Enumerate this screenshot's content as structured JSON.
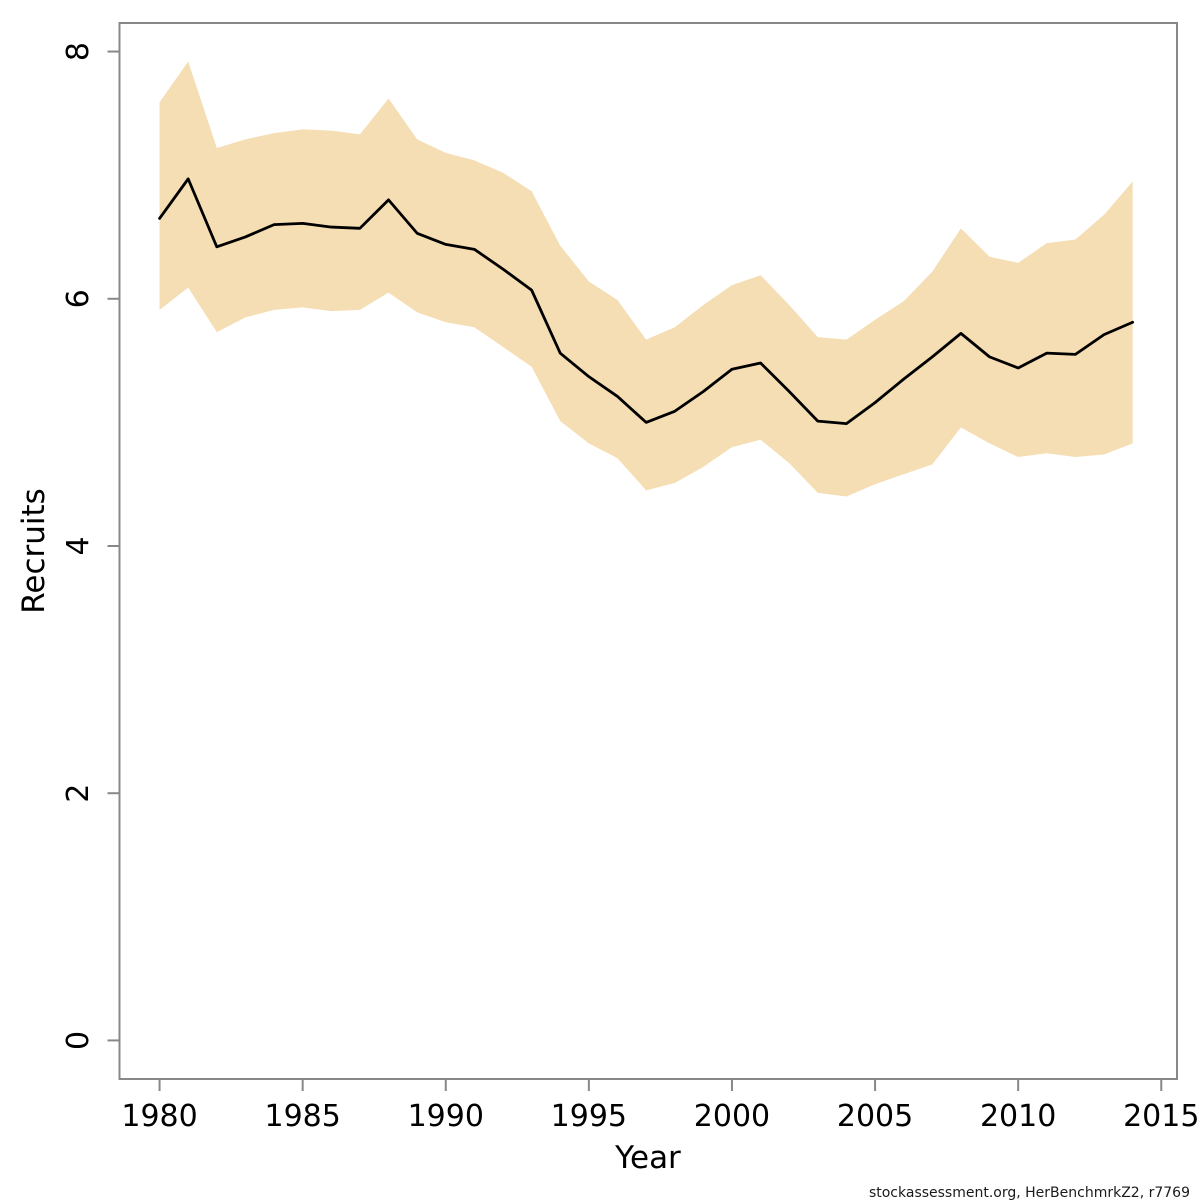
{
  "watermark": {
    "text": "stockassessment.org, HerBenchmrkZ2, r7769"
  },
  "chart_data": {
    "type": "line",
    "title": "",
    "xlabel": "Year",
    "ylabel": "Recruits",
    "legend": "none",
    "grid": "off",
    "xlim": [
      1978.6,
      2015.55
    ],
    "ylim": [
      -0.312,
      8.231
    ],
    "x_ticks": [
      1980,
      1985,
      1990,
      1995,
      2000,
      2005,
      2010,
      2015
    ],
    "y_ticks": [
      0,
      2,
      4,
      6,
      8
    ],
    "x": [
      1980,
      1981,
      1982,
      1983,
      1984,
      1985,
      1986,
      1987,
      1988,
      1989,
      1990,
      1991,
      1992,
      1993,
      1994,
      1995,
      1996,
      1997,
      1998,
      1999,
      2000,
      2001,
      2002,
      2003,
      2004,
      2005,
      2006,
      2007,
      2008,
      2009,
      2010,
      2011,
      2012,
      2013,
      2014
    ],
    "series": [
      {
        "name": "recruits_mean",
        "values": [
          6.65,
          6.97,
          6.42,
          6.5,
          6.6,
          6.61,
          6.58,
          6.57,
          6.8,
          6.53,
          6.44,
          6.4,
          6.24,
          6.07,
          5.56,
          5.37,
          5.21,
          5.0,
          5.09,
          5.25,
          5.43,
          5.48,
          5.25,
          5.01,
          4.99,
          5.16,
          5.35,
          5.53,
          5.72,
          5.53,
          5.44,
          5.56,
          5.55,
          5.71,
          5.81
        ]
      },
      {
        "name": "ci_upper",
        "values": [
          7.59,
          7.92,
          7.22,
          7.29,
          7.34,
          7.37,
          7.36,
          7.33,
          7.62,
          7.29,
          7.18,
          7.12,
          7.02,
          6.87,
          6.43,
          6.14,
          5.99,
          5.67,
          5.77,
          5.95,
          6.11,
          6.19,
          5.95,
          5.69,
          5.67,
          5.83,
          5.98,
          6.22,
          6.57,
          6.34,
          6.29,
          6.45,
          6.48,
          6.68,
          6.95
        ]
      },
      {
        "name": "ci_lower",
        "values": [
          5.91,
          6.09,
          5.73,
          5.85,
          5.91,
          5.93,
          5.9,
          5.91,
          6.05,
          5.89,
          5.81,
          5.77,
          5.61,
          5.45,
          5.01,
          4.83,
          4.71,
          4.45,
          4.51,
          4.64,
          4.8,
          4.86,
          4.67,
          4.43,
          4.4,
          4.5,
          4.58,
          4.66,
          4.96,
          4.83,
          4.72,
          4.75,
          4.72,
          4.74,
          4.83
        ]
      }
    ],
    "band": {
      "lower": "ci_lower",
      "upper": "ci_upper",
      "color": "#F5DEB3"
    },
    "line_color": "#000000",
    "axis_color": "#888888"
  }
}
